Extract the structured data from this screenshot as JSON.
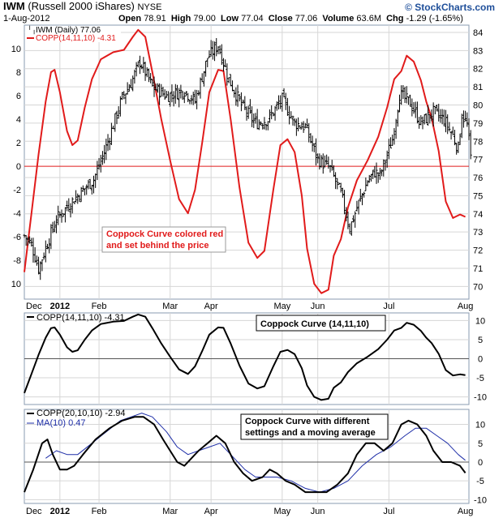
{
  "header": {
    "symbol": "IWM",
    "name": "(Russell 2000 iShares)",
    "exchange": "NYSE",
    "date": "1-Aug-2012",
    "open_label": "Open",
    "open": "78.91",
    "high_label": "High",
    "high": "79.00",
    "low_label": "Low",
    "low": "77.04",
    "close_label": "Close",
    "close": "77.06",
    "volume_label": "Volume",
    "volume": "63.6M",
    "chg_label": "Chg",
    "chg": "-1.29 (-1.65%)",
    "brand": "© StockCharts.com"
  },
  "colors": {
    "price_bars": "#000000",
    "coppock_red": "#e11b1b",
    "coppock_black": "#000000",
    "ma_blue": "#1f2fa8",
    "zero_line_top": "#e11b1b",
    "grid": "#d6d6d6",
    "panel_bg": "#ffffff",
    "frame": "#b9c6d6"
  },
  "chart_data": [
    {
      "type": "ohlc",
      "panel": "price",
      "legend": [
        {
          "label": "IWM (Daily) 77.06",
          "color": "#000000",
          "icon": "ohlc-bar-icon"
        },
        {
          "label": "COPP(14,11,10) -4.31",
          "color": "#e11b1b",
          "icon": "line-icon"
        }
      ],
      "annotation": [
        "Coppock Curve colored red",
        "and set behind the price"
      ],
      "x_labels": [
        "Dec",
        "2012",
        "Feb",
        "Mar",
        "Apr",
        "May",
        "Jun",
        "Jul",
        "Aug"
      ],
      "y_right": {
        "ticks": [
          70,
          71,
          72,
          73,
          74,
          75,
          76,
          77,
          78,
          79,
          80,
          81,
          82,
          83,
          84
        ],
        "range": [
          69.3,
          84.4
        ]
      },
      "y_left": {
        "ticks": [
          10,
          8,
          6,
          4,
          2,
          0,
          -2,
          -4,
          -6,
          -8,
          10
        ],
        "range": [
          -11.3,
          12
        ]
      },
      "price_close": [
        [
          0,
          72.8
        ],
        [
          4,
          72.3
        ],
        [
          8,
          71.0
        ],
        [
          13,
          72.4
        ],
        [
          18,
          73.7
        ],
        [
          25,
          74.5
        ],
        [
          31,
          75.1
        ],
        [
          39,
          75.9
        ],
        [
          45,
          77.4
        ],
        [
          50,
          78.9
        ],
        [
          55,
          80.4
        ],
        [
          60,
          81.2
        ],
        [
          65,
          82.4
        ],
        [
          72,
          81.0
        ],
        [
          80,
          80.5
        ],
        [
          90,
          80.8
        ],
        [
          96,
          80.2
        ],
        [
          103,
          82.6
        ],
        [
          109,
          83.3
        ],
        [
          115,
          81.4
        ],
        [
          122,
          80.0
        ],
        [
          130,
          79.0
        ],
        [
          137,
          79.2
        ],
        [
          145,
          80.3
        ],
        [
          152,
          79.0
        ],
        [
          158,
          78.8
        ],
        [
          165,
          77.0
        ],
        [
          172,
          76.5
        ],
        [
          178,
          75.1
        ],
        [
          183,
          73.2
        ],
        [
          188,
          74.6
        ],
        [
          193,
          75.8
        ],
        [
          197,
          76.3
        ],
        [
          200,
          76.1
        ],
        [
          207,
          78.1
        ],
        [
          211,
          80.6
        ],
        [
          217,
          80.1
        ],
        [
          223,
          79.0
        ],
        [
          230,
          79.6
        ],
        [
          236,
          79.2
        ],
        [
          241,
          78.3
        ],
        [
          244,
          77.6
        ],
        [
          246,
          79.5
        ],
        [
          249,
          78.9
        ],
        [
          251,
          77.1
        ]
      ],
      "series": [
        {
          "name": "COPP(14,11,10)",
          "color": "#e11b1b",
          "points": [
            [
              0,
              -9.0
            ],
            [
              4,
              -4.0
            ],
            [
              8,
              1.0
            ],
            [
              12,
              5.5
            ],
            [
              15,
              8.0
            ],
            [
              17,
              8.2
            ],
            [
              20,
              6.3
            ],
            [
              24,
              3.0
            ],
            [
              27,
              1.8
            ],
            [
              30,
              2.2
            ],
            [
              34,
              5.0
            ],
            [
              38,
              7.4
            ],
            [
              43,
              9.1
            ],
            [
              50,
              9.7
            ],
            [
              56,
              9.9
            ],
            [
              61,
              11.0
            ],
            [
              64,
              11.6
            ],
            [
              68,
              11.0
            ],
            [
              72,
              8.0
            ],
            [
              77,
              4.0
            ],
            [
              82,
              0.5
            ],
            [
              87,
              -2.8
            ],
            [
              92,
              -4.0
            ],
            [
              96,
              -2.0
            ],
            [
              100,
              2.0
            ],
            [
              104,
              6.3
            ],
            [
              109,
              8.2
            ],
            [
              112,
              8.1
            ],
            [
              116,
              4.0
            ],
            [
              121,
              -1.8
            ],
            [
              126,
              -6.5
            ],
            [
              131,
              -7.8
            ],
            [
              135,
              -7.2
            ],
            [
              140,
              -2.0
            ],
            [
              144,
              1.8
            ],
            [
              148,
              2.3
            ],
            [
              152,
              1.2
            ],
            [
              156,
              -2.5
            ],
            [
              159,
              -7.0
            ],
            [
              163,
              -10.0
            ],
            [
              167,
              -10.8
            ],
            [
              171,
              -10.5
            ],
            [
              174,
              -7.6
            ],
            [
              178,
              -6.2
            ],
            [
              182,
              -3.5
            ],
            [
              187,
              -1.2
            ],
            [
              193,
              0.5
            ],
            [
              199,
              2.5
            ],
            [
              204,
              5.0
            ],
            [
              208,
              7.4
            ],
            [
              212,
              8.1
            ],
            [
              215,
              9.4
            ],
            [
              219,
              8.9
            ],
            [
              223,
              7.3
            ],
            [
              226,
              5.5
            ],
            [
              229,
              4.1
            ],
            [
              233,
              1.3
            ],
            [
              237,
              -3.0
            ],
            [
              241,
              -4.4
            ],
            [
              245,
              -4.1
            ],
            [
              248,
              -4.3
            ]
          ]
        }
      ]
    },
    {
      "type": "line",
      "panel": "coppock",
      "annotation": "Coppock Curve (14,11,10)",
      "y_ticks": [
        10,
        5,
        0,
        -5,
        -10
      ],
      "ylim": [
        -12,
        12
      ],
      "series": [
        {
          "name": "COPP(14,11,10) -4.31",
          "color": "#000000",
          "points": [
            [
              0,
              -9.0
            ],
            [
              4,
              -4.0
            ],
            [
              8,
              1.0
            ],
            [
              12,
              5.5
            ],
            [
              15,
              8.0
            ],
            [
              17,
              8.2
            ],
            [
              20,
              6.3
            ],
            [
              24,
              3.0
            ],
            [
              27,
              1.8
            ],
            [
              30,
              2.2
            ],
            [
              34,
              5.0
            ],
            [
              38,
              7.4
            ],
            [
              43,
              9.1
            ],
            [
              50,
              9.7
            ],
            [
              56,
              9.9
            ],
            [
              61,
              11.0
            ],
            [
              64,
              11.6
            ],
            [
              68,
              11.0
            ],
            [
              72,
              8.0
            ],
            [
              77,
              4.0
            ],
            [
              82,
              0.5
            ],
            [
              87,
              -2.8
            ],
            [
              92,
              -4.0
            ],
            [
              96,
              -2.0
            ],
            [
              100,
              2.0
            ],
            [
              104,
              6.3
            ],
            [
              109,
              8.2
            ],
            [
              112,
              8.1
            ],
            [
              116,
              4.0
            ],
            [
              121,
              -1.8
            ],
            [
              126,
              -6.5
            ],
            [
              131,
              -7.8
            ],
            [
              135,
              -7.2
            ],
            [
              140,
              -2.0
            ],
            [
              144,
              1.8
            ],
            [
              148,
              2.3
            ],
            [
              152,
              1.2
            ],
            [
              156,
              -2.5
            ],
            [
              159,
              -7.0
            ],
            [
              163,
              -10.0
            ],
            [
              167,
              -10.8
            ],
            [
              171,
              -10.5
            ],
            [
              174,
              -7.6
            ],
            [
              178,
              -6.2
            ],
            [
              182,
              -3.5
            ],
            [
              187,
              -1.2
            ],
            [
              193,
              0.5
            ],
            [
              199,
              2.5
            ],
            [
              204,
              5.0
            ],
            [
              208,
              7.4
            ],
            [
              212,
              8.1
            ],
            [
              215,
              9.4
            ],
            [
              219,
              8.9
            ],
            [
              223,
              7.3
            ],
            [
              226,
              5.5
            ],
            [
              229,
              4.1
            ],
            [
              233,
              1.3
            ],
            [
              237,
              -3.0
            ],
            [
              241,
              -4.4
            ],
            [
              245,
              -4.1
            ],
            [
              248,
              -4.3
            ]
          ]
        }
      ]
    },
    {
      "type": "line",
      "panel": "coppock-ma",
      "annotation": [
        "Coppock Curve with different",
        "settings and a moving average"
      ],
      "y_ticks": [
        10,
        5,
        0,
        -5,
        -10
      ],
      "ylim": [
        -11,
        14
      ],
      "series": [
        {
          "name": "COPP(20,10,10) -2.94",
          "color": "#000000",
          "points": [
            [
              0,
              -8.0
            ],
            [
              5,
              -2.0
            ],
            [
              10,
              5.0
            ],
            [
              13,
              6.0
            ],
            [
              16,
              2.0
            ],
            [
              20,
              -2.0
            ],
            [
              24,
              -2.0
            ],
            [
              28,
              -1.0
            ],
            [
              33,
              2.0
            ],
            [
              40,
              6.0
            ],
            [
              48,
              9.0
            ],
            [
              55,
              11.0
            ],
            [
              62,
              12.0
            ],
            [
              67,
              12.0
            ],
            [
              73,
              10.0
            ],
            [
              78,
              6.0
            ],
            [
              82,
              3.0
            ],
            [
              86,
              0.0
            ],
            [
              90,
              -1.0
            ],
            [
              94,
              1.0
            ],
            [
              98,
              3.0
            ],
            [
              103,
              5.0
            ],
            [
              108,
              7.0
            ],
            [
              113,
              5.0
            ],
            [
              118,
              0.0
            ],
            [
              123,
              -3.0
            ],
            [
              128,
              -5.0
            ],
            [
              134,
              -4.0
            ],
            [
              138,
              -2.0
            ],
            [
              142,
              -3.0
            ],
            [
              147,
              -5.0
            ],
            [
              152,
              -6.0
            ],
            [
              158,
              -8.0
            ],
            [
              164,
              -8.0
            ],
            [
              170,
              -8.0
            ],
            [
              176,
              -6.0
            ],
            [
              182,
              -3.0
            ],
            [
              187,
              2.0
            ],
            [
              192,
              5.0
            ],
            [
              197,
              5.0
            ],
            [
              202,
              3.0
            ],
            [
              207,
              5.0
            ],
            [
              212,
              10.0
            ],
            [
              216,
              11.0
            ],
            [
              221,
              10.0
            ],
            [
              226,
              7.0
            ],
            [
              230,
              3.0
            ],
            [
              235,
              0.0
            ],
            [
              240,
              0.0
            ],
            [
              245,
              -1.0
            ],
            [
              248,
              -2.9
            ]
          ]
        },
        {
          "name": "MA(10) 0.47",
          "color": "#1f2fa8",
          "points": [
            [
              12,
              1.0
            ],
            [
              18,
              3.0
            ],
            [
              24,
              2.0
            ],
            [
              30,
              2.0
            ],
            [
              38,
              5.0
            ],
            [
              46,
              8.0
            ],
            [
              54,
              11.0
            ],
            [
              60,
              12.0
            ],
            [
              66,
              13.0
            ],
            [
              72,
              12.0
            ],
            [
              80,
              8.0
            ],
            [
              86,
              4.0
            ],
            [
              92,
              2.0
            ],
            [
              98,
              3.0
            ],
            [
              104,
              4.0
            ],
            [
              110,
              5.0
            ],
            [
              116,
              2.0
            ],
            [
              124,
              -2.0
            ],
            [
              130,
              -4.0
            ],
            [
              136,
              -4.0
            ],
            [
              142,
              -4.0
            ],
            [
              150,
              -5.0
            ],
            [
              158,
              -7.0
            ],
            [
              166,
              -8.0
            ],
            [
              174,
              -7.0
            ],
            [
              182,
              -5.0
            ],
            [
              190,
              -1.0
            ],
            [
              198,
              2.0
            ],
            [
              206,
              4.0
            ],
            [
              214,
              7.0
            ],
            [
              220,
              9.0
            ],
            [
              226,
              9.0
            ],
            [
              232,
              7.0
            ],
            [
              238,
              5.0
            ],
            [
              244,
              2.0
            ],
            [
              248,
              0.47
            ]
          ]
        }
      ]
    }
  ]
}
